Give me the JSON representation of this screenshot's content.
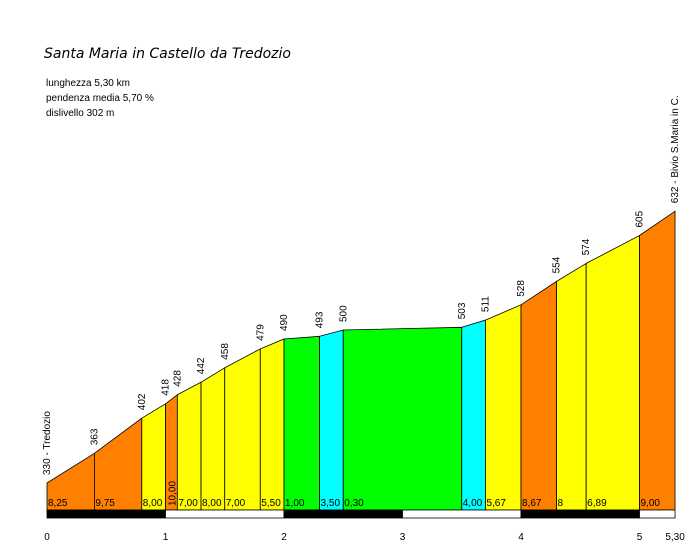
{
  "chart_data": {
    "type": "area",
    "title": "Santa Maria in Castello da Tredozio",
    "info": [
      "lunghezza 5,30 km",
      "pendenza media 5,70 %",
      "dislivello 302 m"
    ],
    "x_ticks": [
      {
        "v": 0,
        "label": "0"
      },
      {
        "v": 1,
        "label": "1"
      },
      {
        "v": 2,
        "label": "2"
      },
      {
        "v": 3,
        "label": "3"
      },
      {
        "v": 4,
        "label": "4"
      },
      {
        "v": 5,
        "label": "5"
      },
      {
        "v": 5.3,
        "label": "5,30"
      }
    ],
    "ylim": [
      300,
      640
    ],
    "points": [
      {
        "x": 0.0,
        "elev": 330,
        "label": "330 - Tredozio"
      },
      {
        "x": 0.4,
        "elev": 363,
        "label": "363"
      },
      {
        "x": 0.8,
        "elev": 402,
        "label": "402"
      },
      {
        "x": 1.0,
        "elev": 418,
        "label": "418"
      },
      {
        "x": 1.1,
        "elev": 428,
        "label": "428"
      },
      {
        "x": 1.3,
        "elev": 442,
        "label": "442"
      },
      {
        "x": 1.5,
        "elev": 458,
        "label": "458"
      },
      {
        "x": 1.8,
        "elev": 479,
        "label": "479"
      },
      {
        "x": 2.0,
        "elev": 490,
        "label": "490"
      },
      {
        "x": 2.3,
        "elev": 493,
        "label": "493"
      },
      {
        "x": 2.5,
        "elev": 500,
        "label": "500"
      },
      {
        "x": 3.5,
        "elev": 503,
        "label": "503"
      },
      {
        "x": 3.7,
        "elev": 511,
        "label": "511"
      },
      {
        "x": 4.0,
        "elev": 528,
        "label": "528"
      },
      {
        "x": 4.3,
        "elev": 554,
        "label": "554"
      },
      {
        "x": 4.55,
        "elev": 574,
        "label": "574"
      },
      {
        "x": 5.0,
        "elev": 605,
        "label": "605"
      },
      {
        "x": 5.3,
        "elev": 632,
        "label": "632 - Bivio S.Maria in C."
      }
    ],
    "segments": [
      {
        "grade": "8,25",
        "color": "#ff8000"
      },
      {
        "grade": "9,75",
        "color": "#ff8000"
      },
      {
        "grade": "8,00",
        "color": "#ffff00"
      },
      {
        "grade": "10,00",
        "color": "#ff8000",
        "vertical": true
      },
      {
        "grade": "7,00",
        "color": "#ffff00"
      },
      {
        "grade": "8,00",
        "color": "#ffff00"
      },
      {
        "grade": "7,00",
        "color": "#ffff00"
      },
      {
        "grade": "5,50",
        "color": "#ffff00"
      },
      {
        "grade": "1,00",
        "color": "#00ff00"
      },
      {
        "grade": "3,50",
        "color": "#00ffff"
      },
      {
        "grade": "0,30",
        "color": "#00ff00"
      },
      {
        "grade": "4,00",
        "color": "#00ffff"
      },
      {
        "grade": "5,67",
        "color": "#ffff00"
      },
      {
        "grade": "8,67",
        "color": "#ff8000"
      },
      {
        "grade": "8",
        "color": "#ffff00"
      },
      {
        "grade": "6,89",
        "color": "#ffff00"
      },
      {
        "grade": "9,00",
        "color": "#ff8000"
      }
    ]
  }
}
